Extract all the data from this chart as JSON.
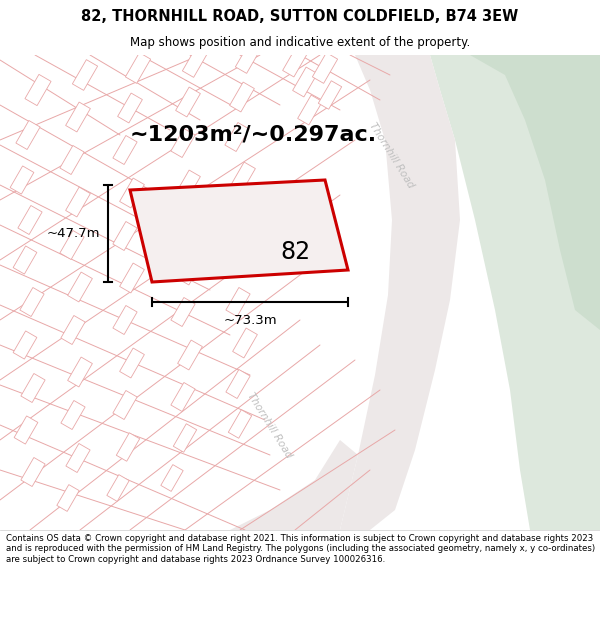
{
  "title": "82, THORNHILL ROAD, SUTTON COLDFIELD, B74 3EW",
  "subtitle": "Map shows position and indicative extent of the property.",
  "footer": "Contains OS data © Crown copyright and database right 2021. This information is subject to Crown copyright and database rights 2023 and is reproduced with the permission of HM Land Registry. The polygons (including the associated geometry, namely x, y co-ordinates) are subject to Crown copyright and database rights 2023 Ordnance Survey 100026316.",
  "bg_map_color": "#f7f4f4",
  "green_color": "#dde8dd",
  "plot_edge": "#cc0000",
  "area_text": "~1203m²/~0.297ac.",
  "label_82": "82",
  "dim_width": "~73.3m",
  "dim_height": "~47.7m",
  "road_label_upper": "Thornhill Road",
  "road_label_lower": "Thornhill Road",
  "line_color": "#e8a8a8",
  "road_fill": "#ece4e4"
}
